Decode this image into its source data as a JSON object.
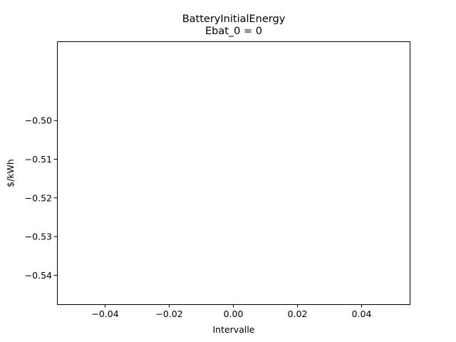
{
  "chart_data": {
    "type": "line",
    "title": "BatteryInitialEnergy",
    "subtitle": "Ebat_0 = 0",
    "xlabel": "Intervalle",
    "ylabel": "$/kWh",
    "xlim": [
      -0.055,
      0.055
    ],
    "ylim": [
      -0.5475,
      -0.4795
    ],
    "xticks": [
      -0.04,
      -0.02,
      0.0,
      0.02,
      0.04
    ],
    "xtick_labels": [
      "−0.04",
      "−0.02",
      "0.00",
      "0.02",
      "0.04"
    ],
    "yticks": [
      -0.5,
      -0.51,
      -0.52,
      -0.53,
      -0.54
    ],
    "ytick_labels": [
      "−0.50",
      "−0.51",
      "−0.52",
      "−0.53",
      "−0.54"
    ],
    "grid": false,
    "series": []
  }
}
